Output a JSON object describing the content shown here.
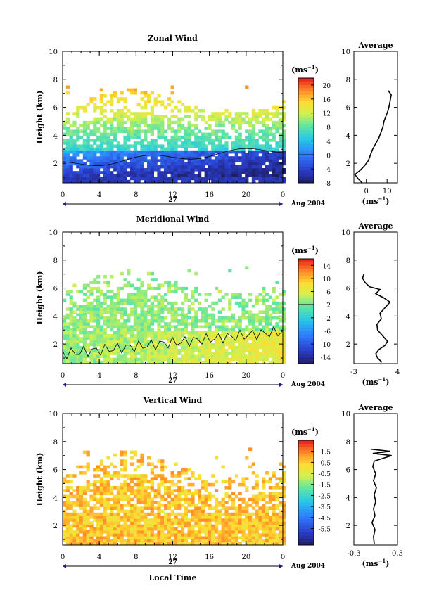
{
  "chart_data": [
    {
      "type": "heatmap",
      "title": "Zonal Wind",
      "ylabel": "Height (km)",
      "ylim": [
        0.6,
        10
      ],
      "yticks": [
        "2",
        "4",
        "6",
        "8",
        "10"
      ],
      "xlim": [
        0,
        24
      ],
      "xticks": [
        "0",
        "4",
        "8",
        "12",
        "16",
        "20",
        "0"
      ],
      "day_label": "27",
      "date_label": "Aug 2004",
      "colorbar": {
        "unit": "(ms",
        "unit_exp": "−1",
        "unit_close": ")",
        "min": -8,
        "max": 22,
        "ticks": [
          "20",
          "16",
          "12",
          "8",
          "4",
          "0",
          "-4",
          "-8"
        ],
        "tick_values": [
          20,
          16,
          12,
          8,
          4,
          0,
          -4,
          -8
        ],
        "zero_line": 0
      },
      "profile": {
        "title": "Average",
        "xlim": [
          -6,
          15
        ],
        "xticks": [
          "0",
          "10"
        ],
        "xtick_values": [
          0,
          10
        ],
        "yticks": [
          "2",
          "4",
          "6",
          "8",
          "10"
        ],
        "xlabel": "(ms",
        "xlabel_exp": "−1",
        "xlabel_close": ")",
        "points": [
          [
            -2,
            0.6
          ],
          [
            -4,
            0.9
          ],
          [
            -5.5,
            1.2
          ],
          [
            -3,
            1.5
          ],
          [
            -1,
            1.8
          ],
          [
            1,
            2.2
          ],
          [
            2,
            2.6
          ],
          [
            3,
            3
          ],
          [
            4.5,
            3.4
          ],
          [
            6,
            3.8
          ],
          [
            7,
            4.2
          ],
          [
            8,
            4.6
          ],
          [
            8.5,
            5
          ],
          [
            9.5,
            5.4
          ],
          [
            10.5,
            5.8
          ],
          [
            11,
            6.1
          ],
          [
            11.5,
            6.5
          ],
          [
            12,
            6.9
          ],
          [
            10.5,
            7.2
          ]
        ]
      }
    },
    {
      "type": "heatmap",
      "title": "Meridional Wind",
      "ylabel": "Height (km)",
      "ylim": [
        0.6,
        10
      ],
      "yticks": [
        "2",
        "4",
        "6",
        "8",
        "10"
      ],
      "xlim": [
        0,
        24
      ],
      "xticks": [
        "0",
        "4",
        "8",
        "12",
        "16",
        "20",
        "0"
      ],
      "day_label": "27",
      "date_label": "Aug 2004",
      "colorbar": {
        "unit": "(ms",
        "unit_exp": "−1",
        "unit_close": ")",
        "min": -16,
        "max": 16,
        "ticks": [
          "14",
          "10",
          "6",
          "2",
          "-2",
          "-6",
          "-10",
          "-14"
        ],
        "tick_values": [
          14,
          10,
          6,
          2,
          -2,
          -6,
          -10,
          -14
        ],
        "zero_line": 2
      },
      "profile": {
        "title": "Average",
        "xlim": [
          -3,
          4
        ],
        "xticks": [
          "-3",
          "4"
        ],
        "xtick_values": [
          -3,
          4
        ],
        "yticks": [
          "2",
          "4",
          "6",
          "8",
          "10"
        ],
        "xlabel": "(ms",
        "xlabel_exp": "−1",
        "xlabel_close": ")",
        "points": [
          [
            1.5,
            0.7
          ],
          [
            0.8,
            1
          ],
          [
            0.5,
            1.3
          ],
          [
            1,
            1.6
          ],
          [
            2,
            1.9
          ],
          [
            2.4,
            2.2
          ],
          [
            1.6,
            2.6
          ],
          [
            0.8,
            3
          ],
          [
            0.7,
            3.4
          ],
          [
            1.4,
            3.8
          ],
          [
            1.2,
            4.2
          ],
          [
            2,
            4.6
          ],
          [
            2.8,
            5
          ],
          [
            1.8,
            5.3
          ],
          [
            0.5,
            5.6
          ],
          [
            1.2,
            5.9
          ],
          [
            -0.5,
            6.1
          ],
          [
            -1.2,
            6.4
          ],
          [
            -1.6,
            6.7
          ],
          [
            -1.4,
            7
          ]
        ]
      }
    },
    {
      "type": "heatmap",
      "title": "Vertical Wind",
      "ylabel": "Height (km)",
      "xlabel": "Local Time",
      "ylim": [
        0.6,
        10
      ],
      "yticks": [
        "2",
        "4",
        "6",
        "8",
        "10"
      ],
      "xlim": [
        0,
        24
      ],
      "xticks": [
        "0",
        "4",
        "8",
        "12",
        "16",
        "20",
        "0"
      ],
      "day_label": "27",
      "date_label": "Aug 2004",
      "colorbar": {
        "unit": "(ms",
        "unit_exp": "−1",
        "unit_close": ")",
        "min": -7,
        "max": 2.5,
        "ticks": [
          "1.5",
          "0.5",
          "-0.5",
          "-1.5",
          "-2.5",
          "-3.5",
          "-4.5",
          "-5.5"
        ],
        "tick_values": [
          1.5,
          0.5,
          -0.5,
          -1.5,
          -2.5,
          -3.5,
          -4.5,
          -5.5
        ],
        "zero_line": null
      },
      "profile": {
        "title": "Average",
        "xlim": [
          -0.3,
          0.3
        ],
        "xticks": [
          "-0.3",
          "0.3"
        ],
        "xtick_values": [
          -0.3,
          0.3
        ],
        "yticks": [
          "2",
          "4",
          "6",
          "8",
          "10"
        ],
        "xlabel": "(ms",
        "xlabel_exp": "−1",
        "xlabel_close": ")",
        "points": [
          [
            -0.02,
            0.7
          ],
          [
            -0.03,
            1.2
          ],
          [
            -0.01,
            1.7
          ],
          [
            -0.05,
            2.2
          ],
          [
            -0.01,
            2.7
          ],
          [
            -0.03,
            3.2
          ],
          [
            0.0,
            3.7
          ],
          [
            -0.02,
            4.2
          ],
          [
            0.01,
            4.7
          ],
          [
            -0.03,
            5.2
          ],
          [
            0.0,
            5.7
          ],
          [
            -0.04,
            6.2
          ],
          [
            -0.02,
            6.6
          ],
          [
            0.22,
            7.0
          ],
          [
            -0.04,
            7.15
          ],
          [
            0.2,
            7.3
          ],
          [
            -0.06,
            7.45
          ]
        ]
      }
    }
  ]
}
